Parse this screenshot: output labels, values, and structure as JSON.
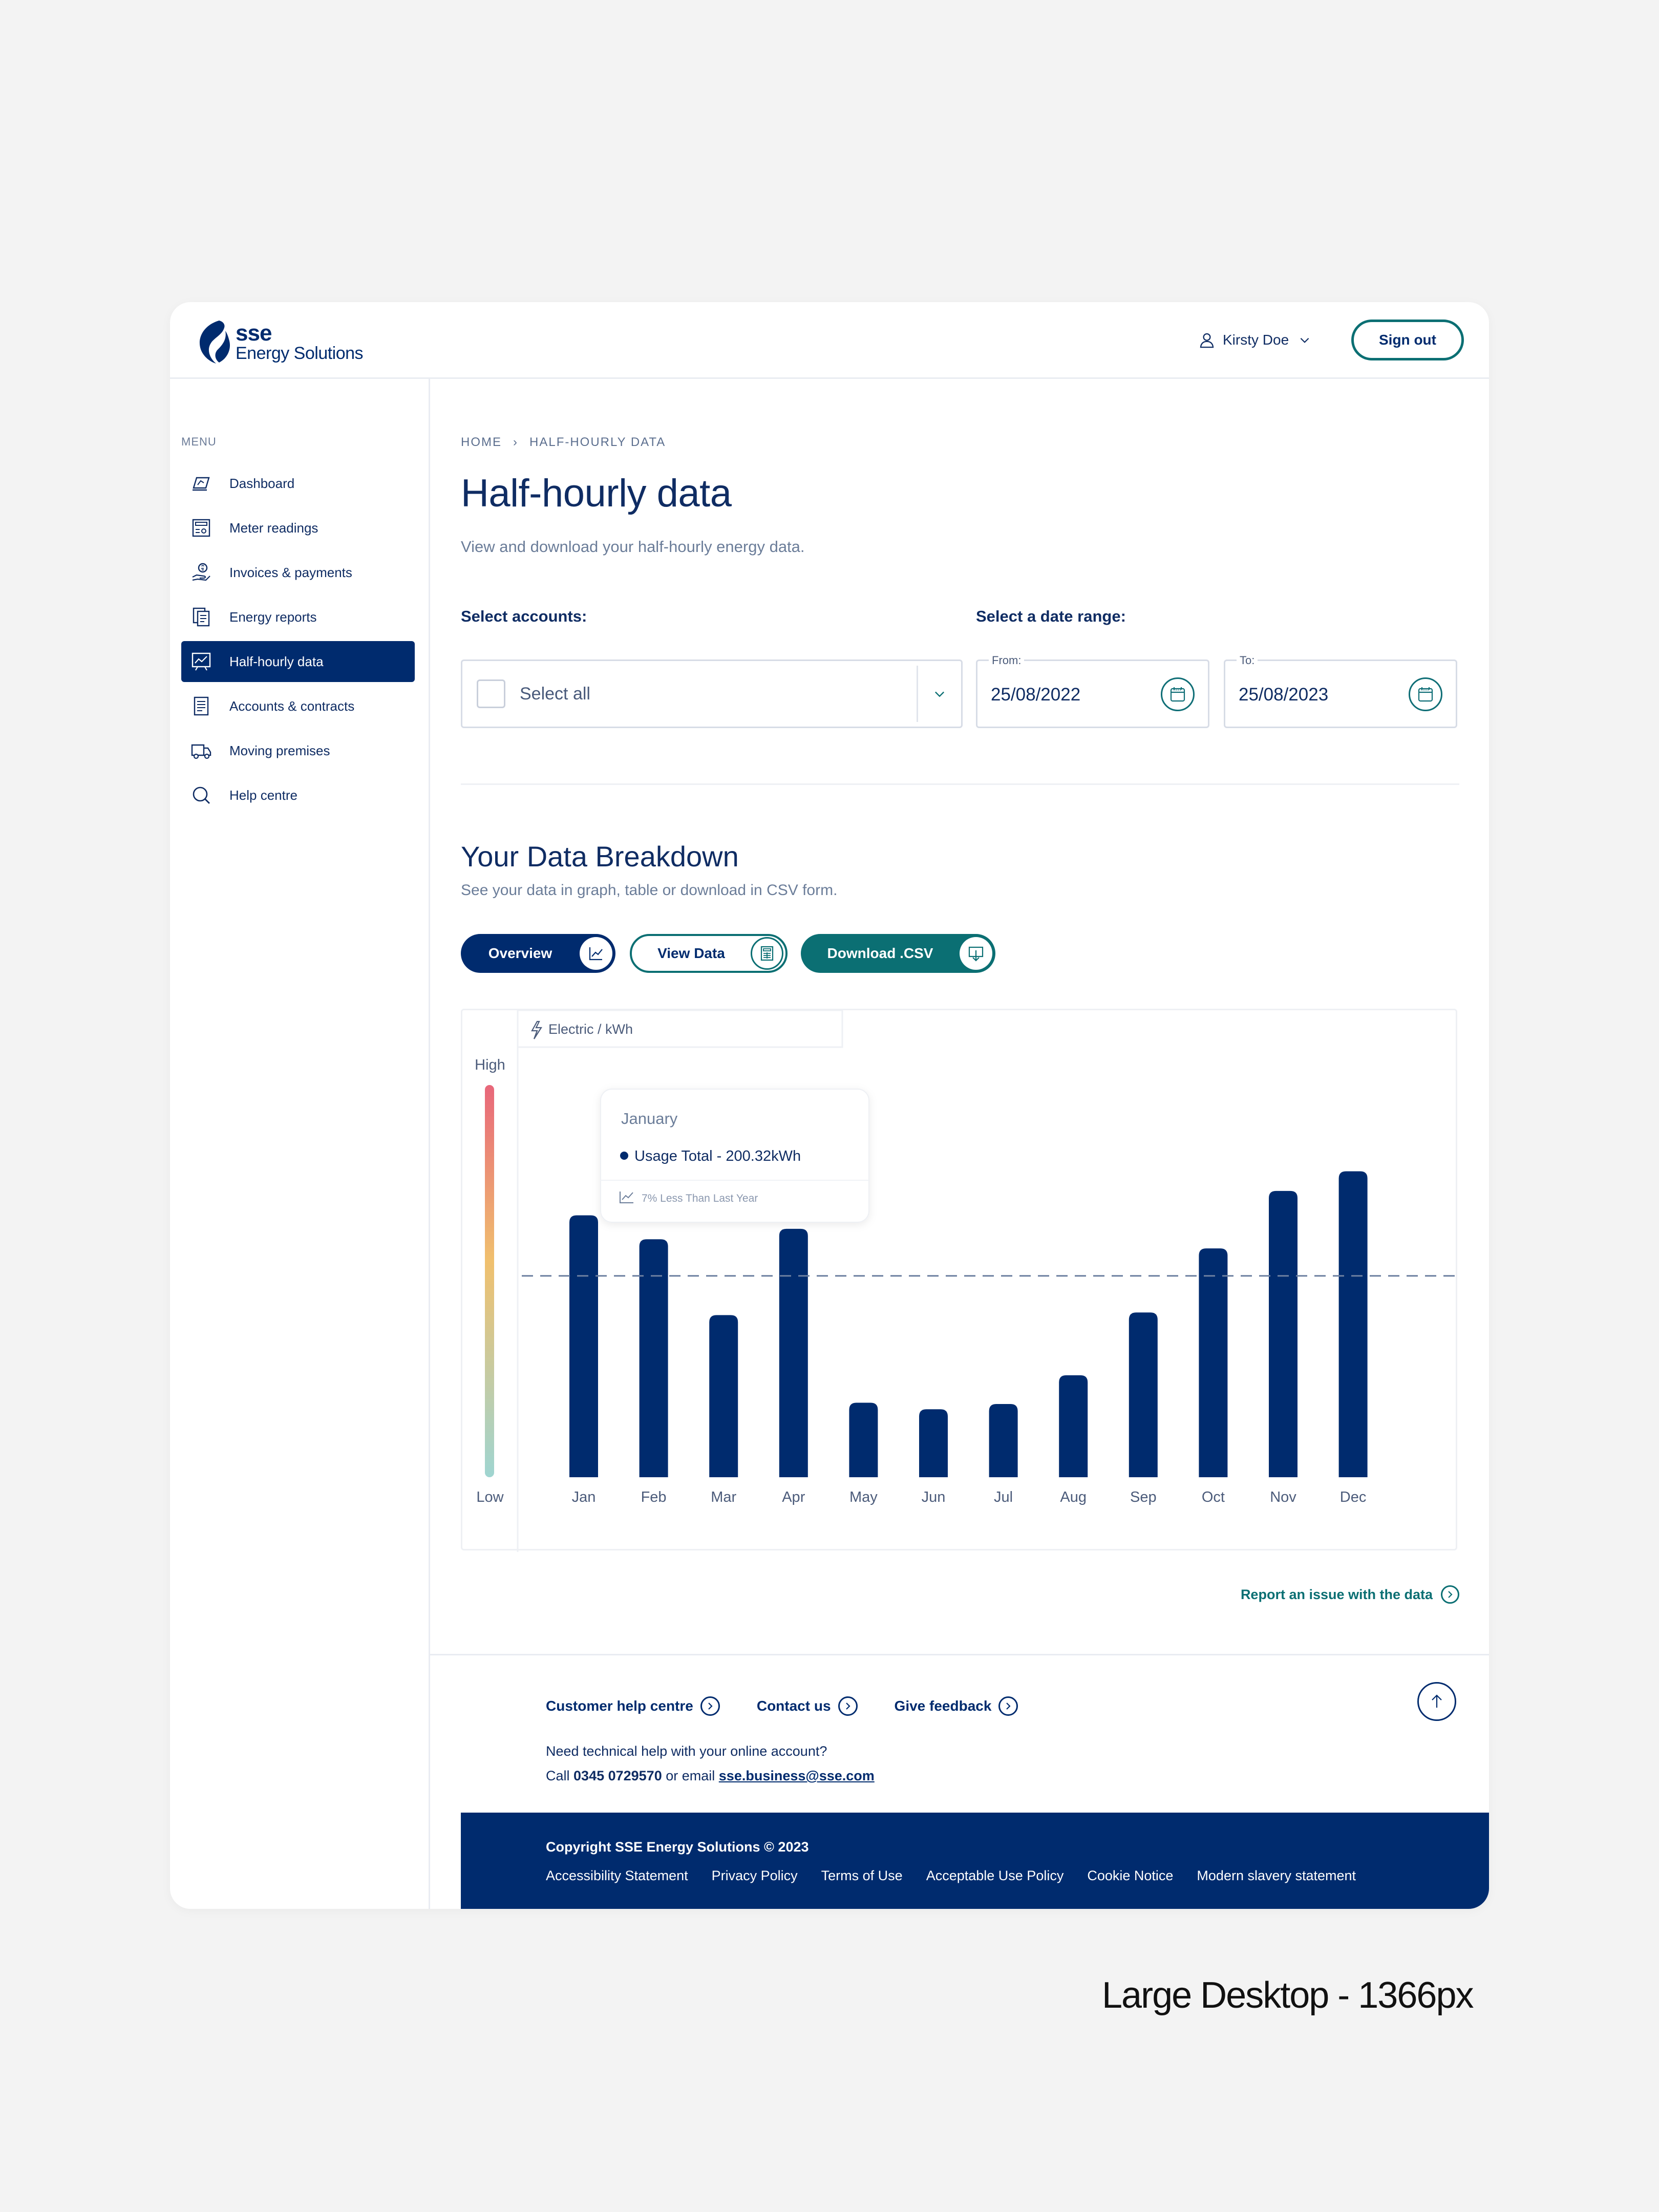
{
  "header": {
    "logo_primary": "sse",
    "logo_secondary": "Energy Solutions",
    "user_name": "Kirsty Doe",
    "sign_out": "Sign out"
  },
  "sidebar": {
    "menu_label": "MENU",
    "items": [
      {
        "label": "Dashboard",
        "icon": "dashboard-icon"
      },
      {
        "label": "Meter readings",
        "icon": "meter-icon"
      },
      {
        "label": "Invoices & payments",
        "icon": "invoice-icon"
      },
      {
        "label": "Energy reports",
        "icon": "reports-icon"
      },
      {
        "label": "Half-hourly data",
        "icon": "chart-icon",
        "active": true
      },
      {
        "label": "Accounts & contracts",
        "icon": "contracts-icon"
      },
      {
        "label": "Moving premises",
        "icon": "van-icon"
      },
      {
        "label": "Help centre",
        "icon": "help-icon"
      }
    ]
  },
  "main": {
    "breadcrumb": {
      "home": "HOME",
      "current": "HALF-HOURLY DATA"
    },
    "title": "Half-hourly data",
    "subtitle": "View and download your half-hourly energy data.",
    "accounts_label": "Select accounts:",
    "select_all": "Select all",
    "date_label": "Select a date range:",
    "from_label": "From:",
    "from_value": "25/08/2022",
    "to_label": "To:",
    "to_value": "25/08/2023",
    "breakdown_title": "Your Data Breakdown",
    "breakdown_sub": "See your data in graph, table or download in CSV form.",
    "tabs": {
      "overview": "Overview",
      "view_data": "View Data",
      "download": "Download .CSV"
    },
    "report_issue": "Report an issue with the data"
  },
  "chart_data": {
    "type": "bar",
    "unit_label": "Electric / kWh",
    "scale_high": "High",
    "scale_low": "Low",
    "categories": [
      "Jan",
      "Feb",
      "Mar",
      "Apr",
      "May",
      "Jun",
      "Jul",
      "Aug",
      "Sep",
      "Oct",
      "Nov",
      "Dec"
    ],
    "values": [
      200.32,
      182,
      124,
      190,
      57,
      52,
      56,
      78,
      126,
      175,
      219,
      234
    ],
    "ylim": [
      0,
      300
    ],
    "average_line": 154,
    "tooltip": {
      "month": "January",
      "series": "Usage Total - 200.32kWh",
      "comparison": "7% Less Than Last Year"
    },
    "colors": {
      "bar": "#002b6e",
      "scale_top": "#e8677a",
      "scale_mid": "#f0c06e",
      "scale_bottom": "#9fd5d1"
    }
  },
  "footer": {
    "links": [
      "Customer help centre",
      "Contact us",
      "Give feedback"
    ],
    "help_line1": "Need technical help with your online account?",
    "help_call": "Call",
    "help_phone": "0345 0729570",
    "help_or": "or email",
    "help_email": "sse.business@sse.com",
    "copyright": "Copyright SSE Energy Solutions © 2023",
    "legal": [
      "Accessibility Statement",
      "Privacy Policy",
      "Terms of Use",
      "Acceptable Use Policy",
      "Cookie Notice",
      "Modern slavery statement"
    ]
  },
  "caption": "Large Desktop - 1366px"
}
